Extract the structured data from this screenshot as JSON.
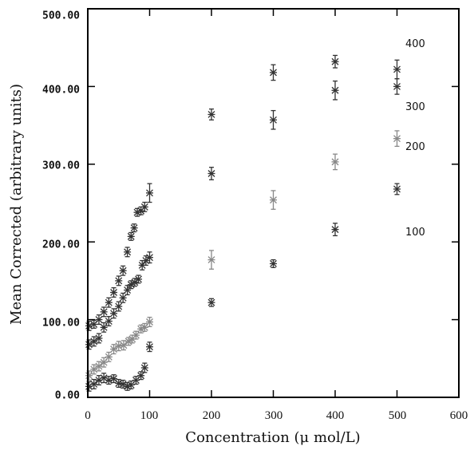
{
  "chart_data": {
    "type": "scatter",
    "title": "",
    "xlabel": "Concentration (μ mol/L)",
    "ylabel": "Mean Corrected (arbitrary units)",
    "xlim": [
      0,
      600
    ],
    "ylim": [
      0,
      500
    ],
    "xticks": [
      "0",
      "100",
      "200",
      "300",
      "400",
      "500",
      "600"
    ],
    "yticks": [
      "0.00",
      "100.00",
      "200.00",
      "300.00",
      "400.00",
      "500.00"
    ],
    "grid": false,
    "legend": "none",
    "marker": "asterisk with error bars",
    "series": [
      {
        "name": "400",
        "color": "#333333",
        "points": [
          {
            "x": 2,
            "y": 92,
            "err": 6
          },
          {
            "x": 10,
            "y": 94,
            "err": 5
          },
          {
            "x": 18,
            "y": 100,
            "err": 6
          },
          {
            "x": 26,
            "y": 110,
            "err": 6
          },
          {
            "x": 34,
            "y": 122,
            "err": 6
          },
          {
            "x": 42,
            "y": 135,
            "err": 6
          },
          {
            "x": 50,
            "y": 150,
            "err": 6
          },
          {
            "x": 57,
            "y": 163,
            "err": 6
          },
          {
            "x": 64,
            "y": 187,
            "err": 6
          },
          {
            "x": 70,
            "y": 207,
            "err": 5
          },
          {
            "x": 75,
            "y": 218,
            "err": 5
          },
          {
            "x": 80,
            "y": 238,
            "err": 5
          },
          {
            "x": 86,
            "y": 240,
            "err": 5
          },
          {
            "x": 92,
            "y": 245,
            "err": 6
          },
          {
            "x": 100,
            "y": 263,
            "err": 12
          },
          {
            "x": 200,
            "y": 364,
            "err": 7
          },
          {
            "x": 300,
            "y": 418,
            "err": 10
          },
          {
            "x": 400,
            "y": 432,
            "err": 8
          },
          {
            "x": 500,
            "y": 422,
            "err": 12
          }
        ]
      },
      {
        "name": "300",
        "color": "#333333",
        "points": [
          {
            "x": 2,
            "y": 68,
            "err": 6
          },
          {
            "x": 10,
            "y": 72,
            "err": 6
          },
          {
            "x": 18,
            "y": 76,
            "err": 6
          },
          {
            "x": 26,
            "y": 90,
            "err": 6
          },
          {
            "x": 34,
            "y": 98,
            "err": 6
          },
          {
            "x": 42,
            "y": 108,
            "err": 6
          },
          {
            "x": 50,
            "y": 117,
            "err": 6
          },
          {
            "x": 57,
            "y": 128,
            "err": 6
          },
          {
            "x": 64,
            "y": 138,
            "err": 6
          },
          {
            "x": 70,
            "y": 145,
            "err": 5
          },
          {
            "x": 76,
            "y": 148,
            "err": 5
          },
          {
            "x": 82,
            "y": 152,
            "err": 5
          },
          {
            "x": 88,
            "y": 170,
            "err": 6
          },
          {
            "x": 94,
            "y": 176,
            "err": 6
          },
          {
            "x": 100,
            "y": 180,
            "err": 7
          },
          {
            "x": 200,
            "y": 288,
            "err": 8
          },
          {
            "x": 300,
            "y": 357,
            "err": 12
          },
          {
            "x": 400,
            "y": 395,
            "err": 12
          },
          {
            "x": 500,
            "y": 400,
            "err": 10
          }
        ]
      },
      {
        "name": "200",
        "color": "#888888",
        "points": [
          {
            "x": 2,
            "y": 28,
            "err": 6
          },
          {
            "x": 10,
            "y": 36,
            "err": 6
          },
          {
            "x": 18,
            "y": 40,
            "err": 6
          },
          {
            "x": 26,
            "y": 45,
            "err": 6
          },
          {
            "x": 34,
            "y": 52,
            "err": 6
          },
          {
            "x": 42,
            "y": 62,
            "err": 6
          },
          {
            "x": 50,
            "y": 66,
            "err": 6
          },
          {
            "x": 58,
            "y": 67,
            "err": 6
          },
          {
            "x": 66,
            "y": 72,
            "err": 5
          },
          {
            "x": 72,
            "y": 75,
            "err": 5
          },
          {
            "x": 78,
            "y": 80,
            "err": 5
          },
          {
            "x": 86,
            "y": 88,
            "err": 5
          },
          {
            "x": 92,
            "y": 90,
            "err": 5
          },
          {
            "x": 100,
            "y": 97,
            "err": 6
          },
          {
            "x": 200,
            "y": 177,
            "err": 12
          },
          {
            "x": 300,
            "y": 254,
            "err": 12
          },
          {
            "x": 400,
            "y": 303,
            "err": 10
          },
          {
            "x": 500,
            "y": 333,
            "err": 10
          }
        ]
      },
      {
        "name": "100",
        "color": "#333333",
        "points": [
          {
            "x": 2,
            "y": 14,
            "err": 6
          },
          {
            "x": 10,
            "y": 17,
            "err": 6
          },
          {
            "x": 18,
            "y": 22,
            "err": 6
          },
          {
            "x": 26,
            "y": 25,
            "err": 6
          },
          {
            "x": 34,
            "y": 22,
            "err": 5
          },
          {
            "x": 42,
            "y": 24,
            "err": 5
          },
          {
            "x": 50,
            "y": 18,
            "err": 5
          },
          {
            "x": 57,
            "y": 17,
            "err": 5
          },
          {
            "x": 64,
            "y": 14,
            "err": 5
          },
          {
            "x": 70,
            "y": 16,
            "err": 5
          },
          {
            "x": 78,
            "y": 22,
            "err": 5
          },
          {
            "x": 86,
            "y": 28,
            "err": 5
          },
          {
            "x": 92,
            "y": 38,
            "err": 6
          },
          {
            "x": 100,
            "y": 65,
            "err": 6
          },
          {
            "x": 200,
            "y": 122,
            "err": 5
          },
          {
            "x": 300,
            "y": 172,
            "err": 5
          },
          {
            "x": 400,
            "y": 216,
            "err": 8
          },
          {
            "x": 500,
            "y": 268,
            "err": 7
          }
        ]
      }
    ],
    "annotations": [
      "400",
      "300",
      "200",
      "100"
    ]
  }
}
